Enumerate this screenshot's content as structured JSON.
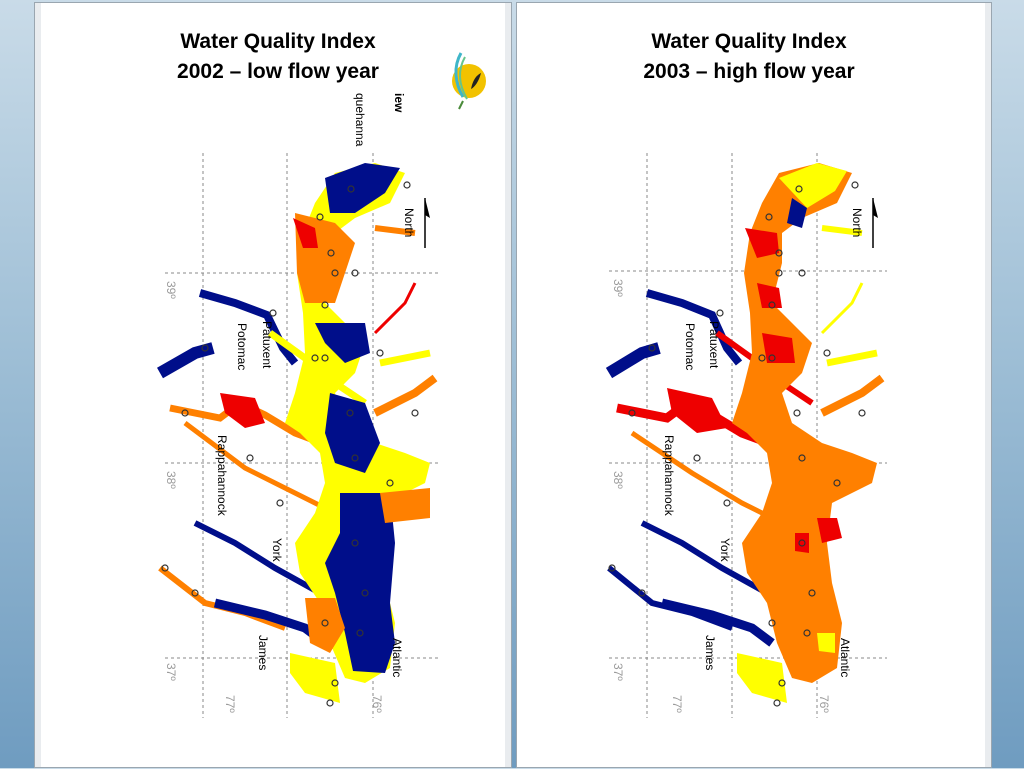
{
  "panels": [
    {
      "title_line1": "Water Quality Index",
      "title_line2": "2002 – low flow year",
      "fragment_top": "iew",
      "fragment_river": "quehanna"
    },
    {
      "title_line1": "Water Quality Index",
      "title_line2": "2003 – high flow year"
    }
  ],
  "map_labels": {
    "north": "North",
    "rivers": [
      "Patuxent",
      "Potomac",
      "Rappahannock",
      "York",
      "James",
      "Atlantic"
    ],
    "latitudes": [
      "39º",
      "38º",
      "37º"
    ],
    "longitudes": [
      "77º",
      "76º"
    ]
  },
  "colors": {
    "blue": "#000e8a",
    "yellow": "#ffff00",
    "orange": "#ff8000",
    "red": "#ee0000"
  }
}
